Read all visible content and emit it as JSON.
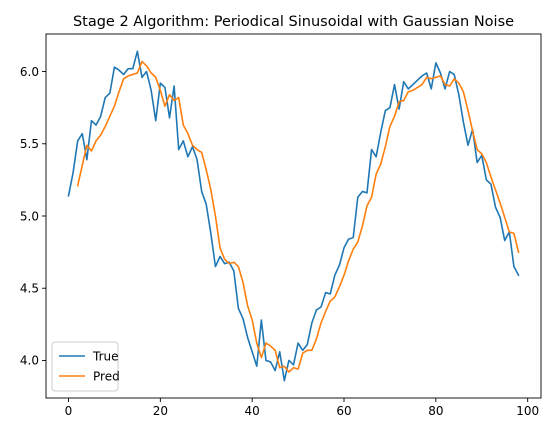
{
  "chart_data": {
    "type": "line",
    "title": "Stage 2 Algorithm: Periodical Sinusoidal with Gaussian Noise",
    "xlabel": "",
    "ylabel": "",
    "xlim": [
      -4.9,
      102.9
    ],
    "ylim": [
      3.74,
      6.26
    ],
    "xticks": [
      0,
      20,
      40,
      60,
      80,
      100
    ],
    "xtick_labels": [
      "0",
      "20",
      "40",
      "60",
      "80",
      "100"
    ],
    "yticks": [
      4.0,
      4.5,
      5.0,
      5.5,
      6.0
    ],
    "ytick_labels": [
      "4.0",
      "4.5",
      "5.0",
      "5.5",
      "6.0"
    ],
    "grid": false,
    "legend_position": "lower-left",
    "series": [
      {
        "name": "True",
        "color": "#1f77b4",
        "x": [
          0,
          1,
          2,
          3,
          4,
          5,
          6,
          7,
          8,
          9,
          10,
          11,
          12,
          13,
          14,
          15,
          16,
          17,
          18,
          19,
          20,
          21,
          22,
          23,
          24,
          25,
          26,
          27,
          28,
          29,
          30,
          31,
          32,
          33,
          34,
          35,
          36,
          37,
          38,
          39,
          40,
          41,
          42,
          43,
          44,
          45,
          46,
          47,
          48,
          49,
          50,
          51,
          52,
          53,
          54,
          55,
          56,
          57,
          58,
          59,
          60,
          61,
          62,
          63,
          64,
          65,
          66,
          67,
          68,
          69,
          70,
          71,
          72,
          73,
          74,
          75,
          76,
          77,
          78,
          79,
          80,
          81,
          82,
          83,
          84,
          85,
          86,
          87,
          88,
          89,
          90,
          91,
          92,
          93,
          94,
          95,
          96,
          97,
          98
        ],
        "values": [
          5.14,
          5.3,
          5.52,
          5.57,
          5.39,
          5.66,
          5.63,
          5.69,
          5.82,
          5.85,
          6.03,
          6.01,
          5.98,
          6.02,
          6.02,
          6.14,
          5.96,
          6.0,
          5.87,
          5.66,
          5.92,
          5.89,
          5.68,
          5.9,
          5.46,
          5.52,
          5.41,
          5.48,
          5.39,
          5.17,
          5.08,
          4.88,
          4.65,
          4.72,
          4.67,
          4.68,
          4.62,
          4.36,
          4.29,
          4.16,
          4.06,
          3.96,
          4.28,
          4.0,
          3.99,
          3.93,
          4.06,
          3.86,
          4.0,
          3.97,
          4.12,
          4.07,
          4.11,
          4.26,
          4.35,
          4.37,
          4.47,
          4.46,
          4.59,
          4.66,
          4.78,
          4.84,
          4.85,
          5.13,
          5.17,
          5.16,
          5.46,
          5.41,
          5.58,
          5.73,
          5.75,
          5.91,
          5.74,
          5.93,
          5.88,
          5.91,
          5.94,
          5.97,
          5.99,
          5.88,
          6.06,
          5.99,
          5.88,
          6.0,
          5.98,
          5.84,
          5.65,
          5.49,
          5.6,
          5.37,
          5.42,
          5.25,
          5.22,
          5.06,
          4.99,
          4.83,
          4.89,
          4.65,
          4.59
        ]
      },
      {
        "name": "Pred",
        "color": "#ff7f0e",
        "x": [
          2,
          3,
          4,
          5,
          6,
          7,
          8,
          9,
          10,
          11,
          12,
          13,
          14,
          15,
          16,
          17,
          18,
          19,
          20,
          21,
          22,
          23,
          24,
          25,
          26,
          27,
          28,
          29,
          30,
          31,
          32,
          33,
          34,
          35,
          36,
          37,
          38,
          39,
          40,
          41,
          42,
          43,
          44,
          45,
          46,
          47,
          48,
          49,
          50,
          51,
          52,
          53,
          54,
          55,
          56,
          57,
          58,
          59,
          60,
          61,
          62,
          63,
          64,
          65,
          66,
          67,
          68,
          69,
          70,
          71,
          72,
          73,
          74,
          75,
          76,
          77,
          78,
          79,
          80,
          81,
          82,
          83,
          84,
          85,
          86,
          87,
          88,
          89,
          90,
          91,
          92,
          93,
          94,
          95,
          96,
          97,
          98
        ],
        "values": [
          5.21,
          5.35,
          5.49,
          5.45,
          5.52,
          5.56,
          5.62,
          5.69,
          5.76,
          5.86,
          5.95,
          5.97,
          5.98,
          5.99,
          6.07,
          6.04,
          5.99,
          5.96,
          5.87,
          5.76,
          5.84,
          5.8,
          5.82,
          5.63,
          5.57,
          5.49,
          5.46,
          5.44,
          5.32,
          5.18,
          5.0,
          4.78,
          4.7,
          4.67,
          4.68,
          4.65,
          4.54,
          4.38,
          4.28,
          4.12,
          4.02,
          4.12,
          4.1,
          4.07,
          3.95,
          3.96,
          3.92,
          3.95,
          3.94,
          4.05,
          4.07,
          4.07,
          4.15,
          4.26,
          4.34,
          4.41,
          4.44,
          4.51,
          4.59,
          4.69,
          4.77,
          4.82,
          4.93,
          5.07,
          5.13,
          5.29,
          5.36,
          5.48,
          5.62,
          5.69,
          5.79,
          5.8,
          5.86,
          5.87,
          5.89,
          5.91,
          5.96,
          5.95,
          5.96,
          5.97,
          5.91,
          5.9,
          5.95,
          5.92,
          5.86,
          5.73,
          5.59,
          5.46,
          5.43,
          5.37,
          5.27,
          5.18,
          5.09,
          4.99,
          4.89,
          4.88,
          4.75
        ]
      }
    ]
  }
}
